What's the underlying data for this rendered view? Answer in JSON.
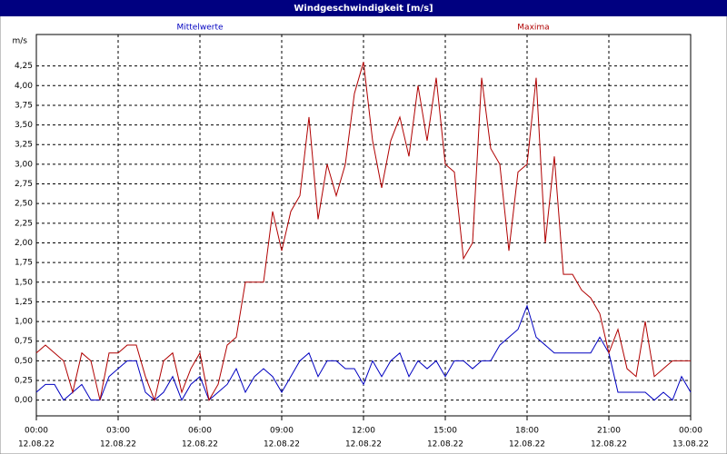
{
  "chart_data": {
    "type": "line",
    "title": "Windgeschwindigkeit [m/s]",
    "y_unit": "m/s",
    "x": [
      0,
      20,
      40,
      60,
      80,
      100,
      120,
      140,
      160,
      180,
      200,
      220,
      240,
      260,
      280,
      300,
      320,
      340,
      360,
      380,
      400,
      420,
      440,
      460,
      480,
      500,
      520,
      540,
      560,
      580,
      600,
      620,
      640,
      660,
      680,
      700,
      720,
      740,
      760,
      780,
      800,
      820,
      840,
      860,
      880,
      900,
      920,
      940,
      960,
      980,
      1000,
      1020,
      1040,
      1060,
      1080,
      1100,
      1120,
      1140,
      1160,
      1180,
      1200,
      1220,
      1240,
      1260,
      1280,
      1300,
      1320,
      1340,
      1360,
      1380,
      1400,
      1420,
      1440
    ],
    "series": [
      {
        "name": "Mittelwerte",
        "color": "#0000c0",
        "values": [
          0.1,
          0.2,
          0.2,
          0,
          0.1,
          0.2,
          0,
          0,
          0.3,
          0.4,
          0.5,
          0.5,
          0.1,
          0,
          0.1,
          0.3,
          0,
          0.2,
          0.3,
          0,
          0.1,
          0.2,
          0.4,
          0.1,
          0.3,
          0.4,
          0.3,
          0.1,
          0.3,
          0.5,
          0.6,
          0.3,
          0.5,
          0.5,
          0.4,
          0.4,
          0.2,
          0.5,
          0.3,
          0.5,
          0.6,
          0.3,
          0.5,
          0.4,
          0.5,
          0.3,
          0.5,
          0.5,
          0.4,
          0.5,
          0.5,
          0.7,
          0.8,
          0.9,
          1.2,
          0.8,
          0.7,
          0.6,
          0.6,
          0.6,
          0.6,
          0.6,
          0.8,
          0.6,
          0.1,
          0.1,
          0.1,
          0.1,
          0,
          0.1,
          0,
          0.3,
          0.1
        ]
      },
      {
        "name": "Maxima",
        "color": "#b00000",
        "values": [
          0.6,
          0.7,
          0.6,
          0.5,
          0.1,
          0.6,
          0.5,
          0,
          0.6,
          0.6,
          0.7,
          0.7,
          0.3,
          0,
          0.5,
          0.6,
          0.1,
          0.4,
          0.6,
          0,
          0.2,
          0.7,
          0.8,
          1.5,
          1.5,
          1.5,
          2.4,
          1.9,
          2.4,
          2.6,
          3.6,
          2.3,
          3.0,
          2.6,
          3.0,
          3.9,
          4.3,
          3.3,
          2.7,
          3.3,
          3.6,
          3.1,
          4.0,
          3.3,
          4.1,
          3.0,
          2.9,
          1.8,
          2.0,
          4.1,
          3.2,
          3.0,
          1.9,
          2.9,
          3.0,
          4.1,
          2.0,
          3.1,
          1.6,
          1.6,
          1.4,
          1.3,
          1.1,
          0.6,
          0.9,
          0.4,
          0.3,
          1.0,
          0.3,
          0.4,
          0.5,
          0.5,
          0.5
        ]
      }
    ],
    "xlim": [
      0,
      1440
    ],
    "xticks": [
      {
        "value": 0,
        "label": "00:00"
      },
      {
        "value": 180,
        "label": "03:00"
      },
      {
        "value": 360,
        "label": "06:00"
      },
      {
        "value": 540,
        "label": "09:00"
      },
      {
        "value": 720,
        "label": "12:00"
      },
      {
        "value": 900,
        "label": "15:00"
      },
      {
        "value": 1080,
        "label": "18:00"
      },
      {
        "value": 1260,
        "label": "21:00"
      },
      {
        "value": 1440,
        "label": "00:00"
      }
    ],
    "xtick_dates": [
      "12.08.22",
      "12.08.22",
      "12.08.22",
      "12.08.22",
      "12.08.22",
      "12.08.22",
      "12.08.22",
      "12.08.22",
      "13.08.22"
    ],
    "ylim": [
      -0.2,
      4.65
    ],
    "yticks": [
      {
        "value": 0,
        "label": "0,00"
      },
      {
        "value": 0.25,
        "label": "0,25"
      },
      {
        "value": 0.5,
        "label": "0,50"
      },
      {
        "value": 0.75,
        "label": "0,75"
      },
      {
        "value": 1,
        "label": "1,00"
      },
      {
        "value": 1.25,
        "label": "1,25"
      },
      {
        "value": 1.5,
        "label": "1,50"
      },
      {
        "value": 1.75,
        "label": "1,75"
      },
      {
        "value": 2,
        "label": "2,00"
      },
      {
        "value": 2.25,
        "label": "2,25"
      },
      {
        "value": 2.5,
        "label": "2,50"
      },
      {
        "value": 2.75,
        "label": "2,75"
      },
      {
        "value": 3,
        "label": "3,00"
      },
      {
        "value": 3.25,
        "label": "3,25"
      },
      {
        "value": 3.5,
        "label": "3,50"
      },
      {
        "value": 3.75,
        "label": "3,75"
      },
      {
        "value": 4,
        "label": "4,00"
      },
      {
        "value": 4.25,
        "label": "4,25"
      }
    ],
    "grid": true
  }
}
